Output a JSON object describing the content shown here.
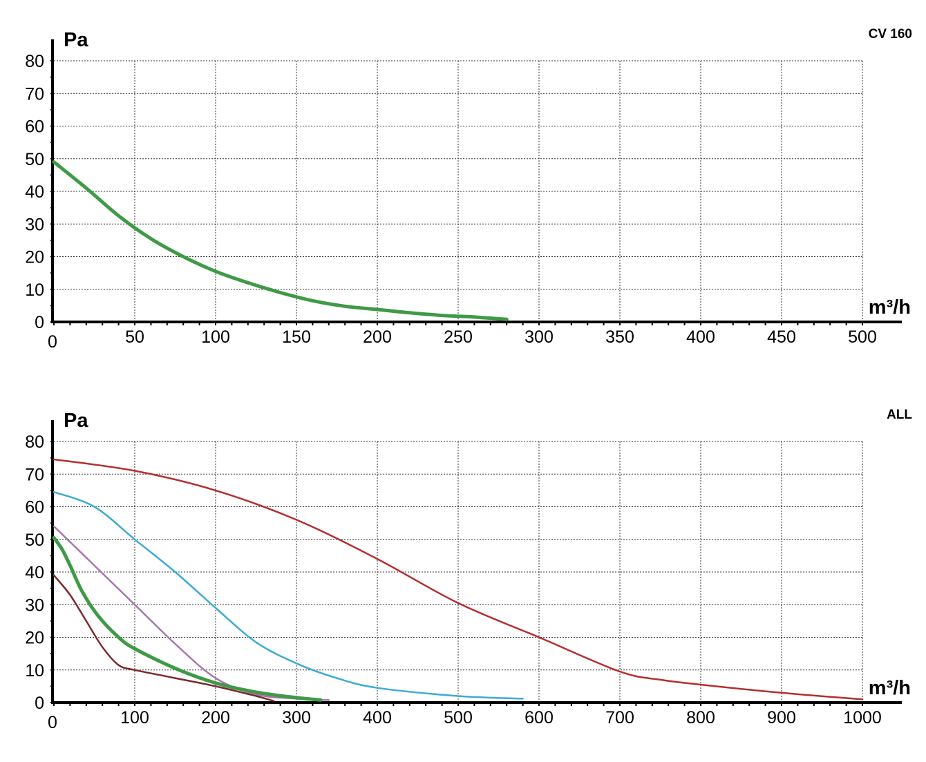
{
  "chart_data": [
    {
      "type": "line",
      "title": "CV 160",
      "xlabel": "m³/h",
      "ylabel": "Pa",
      "xlim": [
        0,
        500
      ],
      "ylim": [
        0,
        80
      ],
      "x_ticks": [
        0,
        50,
        100,
        150,
        200,
        250,
        300,
        350,
        400,
        450,
        500
      ],
      "y_ticks": [
        0,
        10,
        20,
        30,
        40,
        50,
        60,
        70,
        80
      ],
      "grid": true,
      "series": [
        {
          "color": "#3f9a46",
          "width": 5,
          "points": [
            [
              0,
              49
            ],
            [
              20,
              41
            ],
            [
              40,
              32.5
            ],
            [
              60,
              25.5
            ],
            [
              80,
              20
            ],
            [
              100,
              15.5
            ],
            [
              120,
              12
            ],
            [
              140,
              9
            ],
            [
              160,
              6.5
            ],
            [
              180,
              4.8
            ],
            [
              200,
              3.8
            ],
            [
              220,
              2.8
            ],
            [
              240,
              2
            ],
            [
              260,
              1.5
            ],
            [
              280,
              0.8
            ]
          ]
        }
      ]
    },
    {
      "type": "line",
      "title": "ALL",
      "xlabel": "m³/h",
      "ylabel": "Pa",
      "xlim": [
        0,
        1000
      ],
      "ylim": [
        0,
        80
      ],
      "x_ticks": [
        0,
        100,
        200,
        300,
        400,
        500,
        600,
        700,
        800,
        900,
        1000
      ],
      "y_ticks": [
        0,
        10,
        20,
        30,
        40,
        50,
        60,
        70,
        80
      ],
      "grid": true,
      "series": [
        {
          "color": "#b52f2c",
          "width": 2.5,
          "points": [
            [
              0,
              74.5
            ],
            [
              100,
              71
            ],
            [
              200,
              65
            ],
            [
              300,
              56
            ],
            [
              400,
              44
            ],
            [
              500,
              30.5
            ],
            [
              600,
              20
            ],
            [
              700,
              9.5
            ],
            [
              750,
              7
            ],
            [
              800,
              5.5
            ],
            [
              900,
              3
            ],
            [
              1000,
              1
            ]
          ]
        },
        {
          "color": "#3daad6",
          "width": 2.5,
          "points": [
            [
              0,
              64.5
            ],
            [
              50,
              60
            ],
            [
              100,
              50
            ],
            [
              150,
              40
            ],
            [
              200,
              29
            ],
            [
              250,
              18.5
            ],
            [
              300,
              12
            ],
            [
              350,
              7.5
            ],
            [
              400,
              4.5
            ],
            [
              500,
              2
            ],
            [
              580,
              1.2
            ]
          ]
        },
        {
          "color": "#a874b0",
          "width": 2.5,
          "points": [
            [
              0,
              54
            ],
            [
              50,
              42
            ],
            [
              100,
              30
            ],
            [
              150,
              18
            ],
            [
              200,
              7.5
            ],
            [
              250,
              2.5
            ],
            [
              300,
              1.2
            ],
            [
              340,
              0.8
            ]
          ]
        },
        {
          "color": "#3f9a46",
          "width": 5,
          "points": [
            [
              0,
              50.5
            ],
            [
              10,
              47
            ],
            [
              20,
              42
            ],
            [
              35,
              34
            ],
            [
              55,
              26.5
            ],
            [
              80,
              20
            ],
            [
              100,
              16.5
            ],
            [
              150,
              10.5
            ],
            [
              200,
              6
            ],
            [
              250,
              3.2
            ],
            [
              300,
              1.5
            ],
            [
              330,
              0.8
            ]
          ]
        },
        {
          "color": "#7a2a2a",
          "width": 2.5,
          "points": [
            [
              0,
              39
            ],
            [
              20,
              33
            ],
            [
              40,
              25
            ],
            [
              60,
              17
            ],
            [
              80,
              11.5
            ],
            [
              100,
              10
            ],
            [
              150,
              7.5
            ],
            [
              200,
              5
            ],
            [
              250,
              2
            ],
            [
              272,
              0.5
            ]
          ]
        }
      ]
    }
  ]
}
